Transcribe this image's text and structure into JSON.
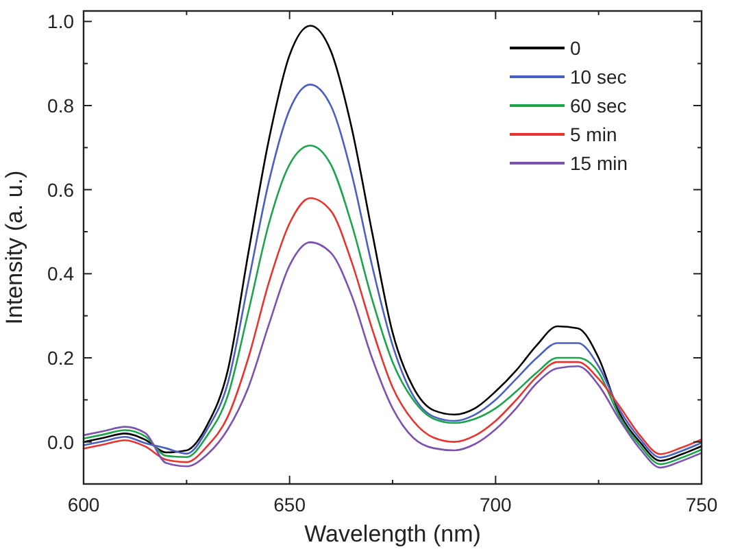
{
  "chart_data": {
    "type": "line",
    "xlabel": "Wavelength (nm)",
    "ylabel": "Intensity (a. u.)",
    "x": [
      600,
      605,
      610,
      615,
      620,
      625,
      630,
      635,
      640,
      645,
      650,
      655,
      660,
      665,
      670,
      675,
      680,
      685,
      690,
      695,
      700,
      705,
      710,
      715,
      720,
      725,
      730,
      735,
      740,
      745,
      750
    ],
    "series": [
      {
        "name": "0",
        "color": "#000000",
        "values": [
          0,
          0.01,
          0.02,
          0.005,
          -0.025,
          -0.02,
          0.04,
          0.17,
          0.45,
          0.72,
          0.92,
          0.99,
          0.93,
          0.75,
          0.5,
          0.26,
          0.13,
          0.075,
          0.065,
          0.08,
          0.12,
          0.17,
          0.23,
          0.275,
          0.27,
          0.2,
          0.07,
          0,
          -0.045,
          -0.03,
          -0.01
        ]
      },
      {
        "name": "10 sec",
        "color": "#4a5fc1",
        "values": [
          -0.008,
          0.002,
          0.012,
          -0.003,
          -0.015,
          -0.028,
          0.03,
          0.14,
          0.38,
          0.62,
          0.79,
          0.85,
          0.8,
          0.64,
          0.42,
          0.23,
          0.11,
          0.06,
          0.05,
          0.065,
          0.1,
          0.15,
          0.2,
          0.235,
          0.235,
          0.18,
          0.078,
          0.008,
          -0.037,
          -0.022,
          -0.002
        ]
      },
      {
        "name": "60 sec",
        "color": "#1aa54a",
        "values": [
          0.008,
          0.018,
          0.028,
          0.013,
          -0.033,
          -0.036,
          0.015,
          0.11,
          0.31,
          0.52,
          0.66,
          0.705,
          0.66,
          0.52,
          0.34,
          0.19,
          0.1,
          0.055,
          0.045,
          0.055,
          0.08,
          0.12,
          0.165,
          0.2,
          0.2,
          0.165,
          0.062,
          -0.008,
          -0.053,
          -0.038,
          -0.018
        ]
      },
      {
        "name": "5 min",
        "color": "#e8332e",
        "values": [
          -0.016,
          -0.006,
          0.004,
          -0.011,
          -0.042,
          -0.048,
          -0.01,
          0.06,
          0.2,
          0.38,
          0.52,
          0.58,
          0.55,
          0.43,
          0.27,
          0.13,
          0.05,
          0.01,
          0,
          0.015,
          0.05,
          0.1,
          0.155,
          0.19,
          0.19,
          0.15,
          0.086,
          0.016,
          -0.029,
          -0.014,
          0.006
        ]
      },
      {
        "name": "15 min",
        "color": "#7b52b0",
        "values": [
          0.016,
          0.026,
          0.036,
          0.021,
          -0.05,
          -0.058,
          -0.03,
          0.03,
          0.13,
          0.28,
          0.42,
          0.475,
          0.45,
          0.35,
          0.2,
          0.08,
          0.01,
          -0.015,
          -0.02,
          -0.005,
          0.03,
          0.08,
          0.14,
          0.175,
          0.18,
          0.135,
          0.054,
          -0.016,
          -0.061,
          -0.046,
          -0.026
        ]
      }
    ],
    "xlim": [
      600,
      750
    ],
    "xticks": [
      600,
      {
        "value": 625,
        "label": null
      },
      650,
      {
        "value": 675,
        "label": null
      },
      700,
      {
        "value": 725,
        "label": null
      },
      750
    ],
    "ylim": [
      -0.1,
      1.025
    ],
    "yticks": [
      {
        "value": -0.1,
        "label": null
      },
      {
        "value": 0,
        "label": "0.0"
      },
      {
        "value": 0.1,
        "label": null
      },
      0.2,
      {
        "value": 0.3,
        "label": null
      },
      0.4,
      {
        "value": 0.5,
        "label": null
      },
      0.6,
      {
        "value": 0.7,
        "label": null
      },
      0.8,
      {
        "value": 0.9,
        "label": null
      },
      {
        "value": 1,
        "label": "1.0"
      }
    ],
    "grid": false,
    "legend": "top right",
    "marker": "none",
    "line_style": "solid"
  }
}
